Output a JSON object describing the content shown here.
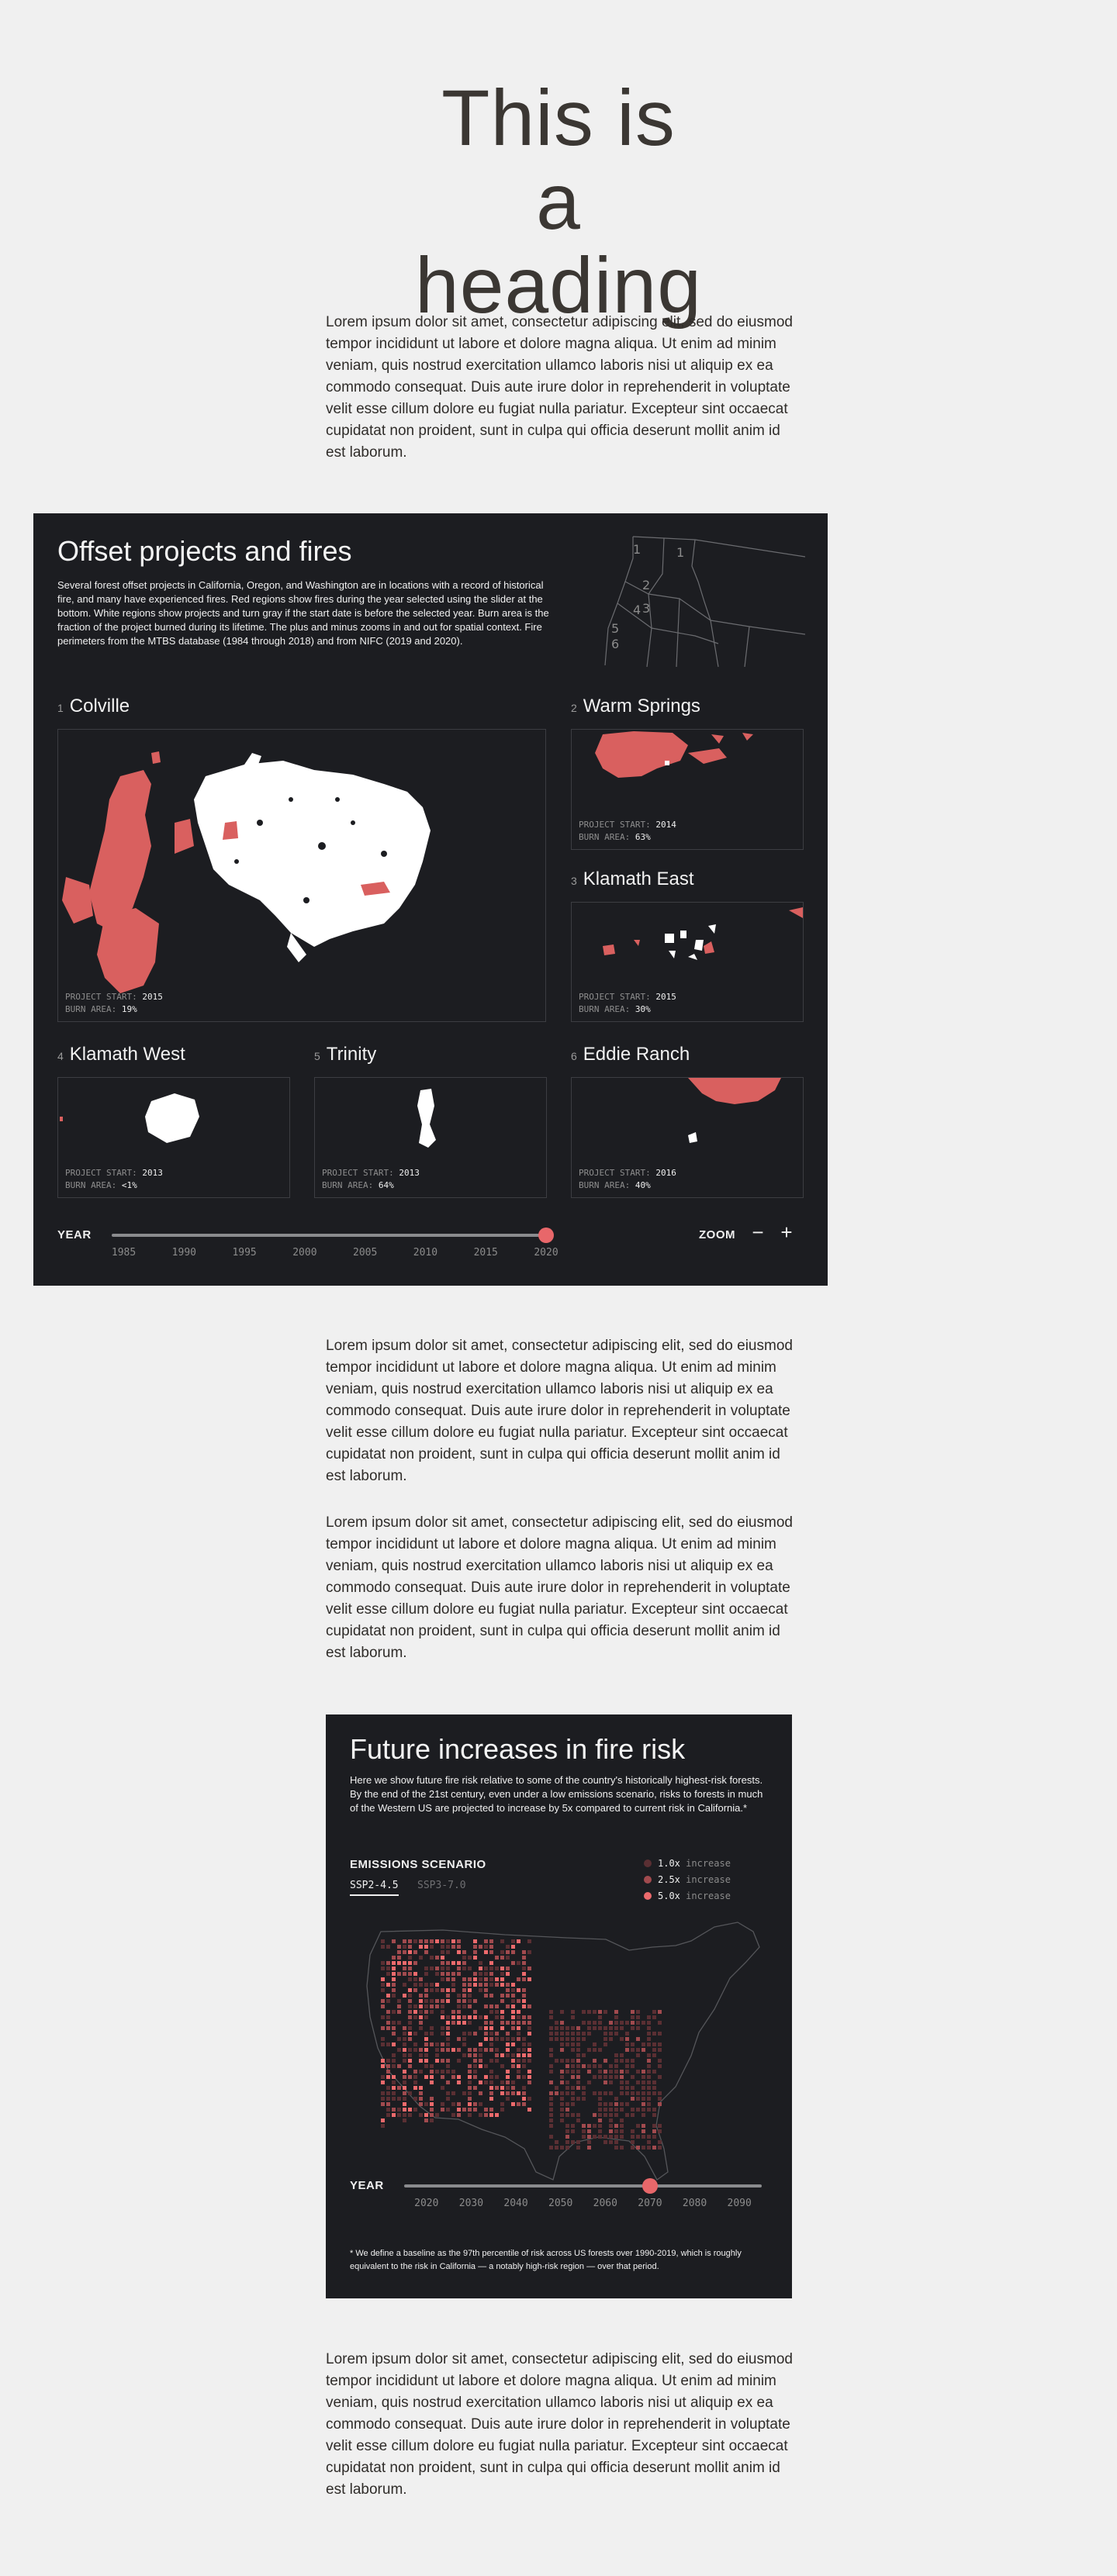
{
  "heading": "This is a heading",
  "paragraphs": [
    "Lorem ipsum dolor sit amet, consectetur adipiscing elit, sed do eiusmod tempor incididunt ut labore et dolore magna aliqua. Ut enim ad minim veniam, quis nostrud exercitation ullamco laboris nisi ut aliquip ex ea commodo consequat. Duis aute irure dolor in reprehenderit in voluptate velit esse cillum dolore eu fugiat nulla pariatur. Excepteur sint occaecat cupidatat non proident, sunt in culpa qui officia deserunt mollit anim id est laborum.",
    "Lorem ipsum dolor sit amet, consectetur adipiscing elit, sed do eiusmod tempor incididunt ut labore et dolore magna aliqua. Ut enim ad minim veniam, quis nostrud exercitation ullamco laboris nisi ut aliquip ex ea commodo consequat. Duis aute irure dolor in reprehenderit in voluptate velit esse cillum dolore eu fugiat nulla pariatur. Excepteur sint occaecat cupidatat non proident, sunt in culpa qui officia deserunt mollit anim id est laborum.",
    "Lorem ipsum dolor sit amet, consectetur adipiscing elit, sed do eiusmod tempor incididunt ut labore et dolore magna aliqua. Ut enim ad minim veniam, quis nostrud exercitation ullamco laboris nisi ut aliquip ex ea commodo consequat. Duis aute irure dolor in reprehenderit in voluptate velit esse cillum dolore eu fugiat nulla pariatur. Excepteur sint occaecat cupidatat non proident, sunt in culpa qui officia deserunt mollit anim id est laborum.",
    "Lorem ipsum dolor sit amet, consectetur adipiscing elit, sed do eiusmod tempor incididunt ut labore et dolore magna aliqua. Ut enim ad minim veniam, quis nostrud exercitation ullamco laboris nisi ut aliquip ex ea commodo consequat. Duis aute irure dolor in reprehenderit in voluptate velit esse cillum dolore eu fugiat nulla pariatur. Excepteur sint occaecat cupidatat non proident, sunt in culpa qui officia deserunt mollit anim id est laborum."
  ],
  "offsets": {
    "title": "Offset projects and fires",
    "description": "Several forest offset projects in California, Oregon, and Washington are in locations with a record of historical fire, and many have experienced fires. Red regions show fires during the year selected using the slider at the bottom. White regions show projects and turn gray if the start date is before the selected year. Burn area is the fraction of the project burned during its lifetime. The plus and minus zooms in and out for spatial context. Fire perimeters from the MTBS database (1984 through 2018) and from NIFC (2019 and 2020).",
    "locator_numbers": [
      "1",
      "2",
      "3",
      "4",
      "5",
      "6"
    ],
    "start_label": "PROJECT START:",
    "burn_label": "BURN AREA:",
    "regions": [
      {
        "num": "1",
        "name": "Colville",
        "start": "2015",
        "burn": "19%"
      },
      {
        "num": "2",
        "name": "Warm Springs",
        "start": "2014",
        "burn": "63%"
      },
      {
        "num": "3",
        "name": "Klamath East",
        "start": "2015",
        "burn": "30%"
      },
      {
        "num": "4",
        "name": "Klamath West",
        "start": "2013",
        "burn": "<1%"
      },
      {
        "num": "5",
        "name": "Trinity",
        "start": "2013",
        "burn": "64%"
      },
      {
        "num": "6",
        "name": "Eddie Ranch",
        "start": "2016",
        "burn": "40%"
      }
    ],
    "year_label": "YEAR",
    "year_ticks": [
      "1985",
      "1990",
      "1995",
      "2000",
      "2005",
      "2010",
      "2015",
      "2020"
    ],
    "year_range": [
      1984,
      2020
    ],
    "selected_year": 2020,
    "zoom_label": "ZOOM",
    "zoom_minus": "−",
    "zoom_plus": "+",
    "colors": {
      "fire": "#d9605f",
      "project": "#ffffff",
      "background": "#1c1d21"
    }
  },
  "risk": {
    "title": "Future increases in fire risk",
    "description": "Here we show future fire risk relative to some of the country's historically highest-risk forests. By the end of the 21st century, even under a low emissions scenario, risks to forests in much of the Western US are projected to increase by 5x compared to current risk in California.*",
    "scenario_label": "EMISSIONS SCENARIO",
    "scenarios": [
      "SSP2-4.5",
      "SSP3-7.0"
    ],
    "selected_scenario": "SSP2-4.5",
    "legend": [
      {
        "value": "1.0x",
        "text": "increase",
        "color": "#5a2f33"
      },
      {
        "value": "2.5x",
        "text": "increase",
        "color": "#a14a4e"
      },
      {
        "value": "5.0x",
        "text": "increase",
        "color": "#ec6a6c"
      }
    ],
    "year_label": "YEAR",
    "year_ticks": [
      "2020",
      "2030",
      "2040",
      "2050",
      "2060",
      "2070",
      "2080",
      "2090"
    ],
    "year_range": [
      2015,
      2095
    ],
    "selected_year": 2070,
    "footnote": "* We define a baseline as the 97th percentile of risk across US forests over 1990-2019, which is roughly equivalent to the risk in California — a notably high-risk region — over that period."
  }
}
